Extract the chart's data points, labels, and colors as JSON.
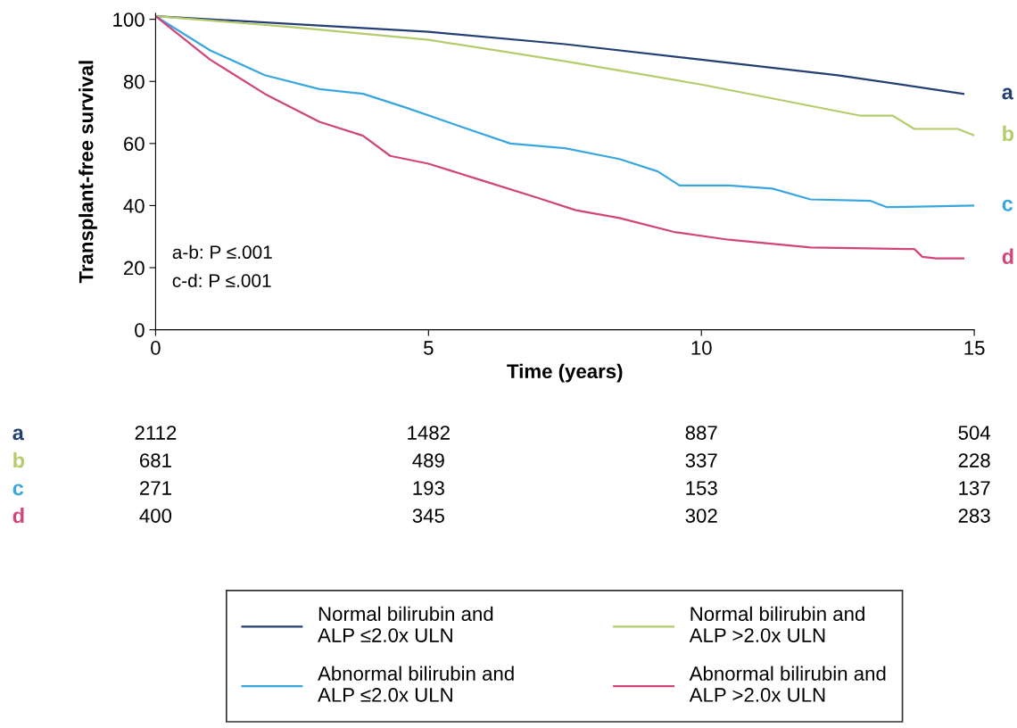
{
  "chart_data": {
    "type": "line",
    "xlabel": "Time (years)",
    "ylabel": "Transplant-free survival",
    "xlim": [
      0,
      15
    ],
    "ylim": [
      0,
      102
    ],
    "xticks": [
      0,
      5,
      10,
      15
    ],
    "yticks": [
      0,
      20,
      40,
      60,
      80,
      100
    ],
    "grid": false,
    "legend": "bottom",
    "line_style": "solid",
    "series": [
      {
        "name": "Normal bilirubin and\nALP ≤2.0x ULN",
        "color": "#243f72",
        "x": [
          0,
          2.5,
          5,
          7.5,
          10,
          12.5,
          14.8
        ],
        "values": [
          101,
          98.5,
          96,
          92,
          87,
          82,
          76
        ]
      },
      {
        "name": "Normal bilirubin and\nALP >2.0x ULN",
        "color": "#b5cc6a",
        "x": [
          0,
          2.5,
          5,
          7.5,
          10,
          12.9,
          13.5,
          13.9,
          14.7,
          15
        ],
        "values": [
          101,
          97.5,
          93.4,
          86.5,
          79,
          69,
          69,
          64.7,
          64.7,
          62.6
        ]
      },
      {
        "name": "Abnormal bilirubin and\nALP ≤2.0x ULN",
        "color": "#3aa6e0",
        "x": [
          0,
          1,
          2,
          3,
          3.8,
          4.6,
          5.5,
          6.5,
          7.5,
          8.5,
          9.2,
          9.6,
          10.5,
          11.3,
          12,
          13.1,
          13.4,
          15
        ],
        "values": [
          101,
          90,
          82,
          77.5,
          76,
          71.5,
          66,
          60,
          58.5,
          55,
          51,
          46.5,
          46.5,
          45.5,
          42,
          41.5,
          39.5,
          40
        ]
      },
      {
        "name": "Abnormal bilirubin and\nALP >2.0x ULN",
        "color": "#d1457a",
        "x": [
          0,
          1,
          2,
          3,
          3.8,
          4.3,
          5,
          6,
          7,
          7.7,
          8.5,
          9.5,
          10.5,
          12,
          13.9,
          14.05,
          14.3,
          14.8
        ],
        "values": [
          101,
          87,
          76,
          67,
          62.5,
          56,
          53.5,
          48,
          42.5,
          38.5,
          36,
          31.5,
          29,
          26.5,
          26,
          23.5,
          23,
          23
        ]
      }
    ],
    "annotations": [
      "a-b: P ≤.001",
      "c-d: P ≤.001",
      "a",
      "b",
      "c",
      "d",
      "a",
      "2112",
      "1482",
      "887",
      "504",
      "b",
      "681",
      "489",
      "337",
      "228",
      "c",
      "271",
      "193",
      "153",
      "137",
      "d",
      "400",
      "345",
      "302",
      "283"
    ]
  }
}
